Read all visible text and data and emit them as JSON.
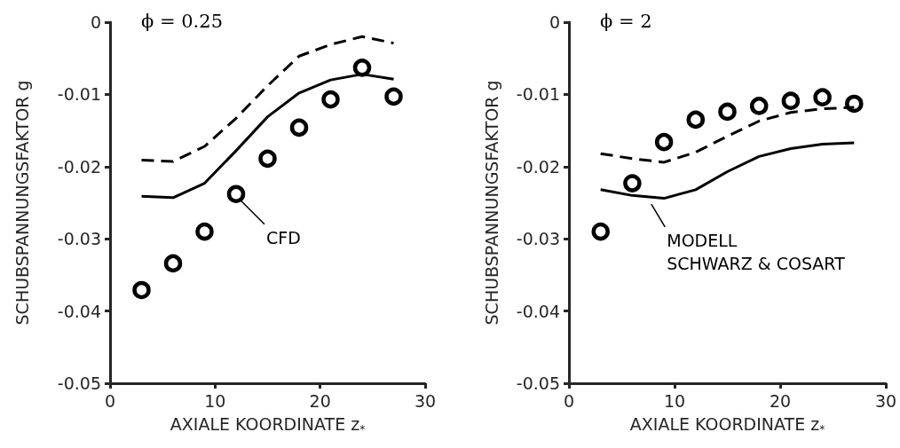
{
  "chart_data": [
    {
      "type": "line",
      "title": "ϕ = 0.25",
      "xlabel": "AXIALE KOORDINATE z$_{*}$",
      "ylabel": "SCHUBSPANNUNGSFAKTOR g",
      "x": [
        3,
        6,
        9,
        12,
        15,
        18,
        21,
        24,
        27
      ],
      "series": [
        {
          "type": "scatter",
          "marker": "circle",
          "color": "#000000",
          "values": [
            -0.0371,
            -0.0334,
            -0.029,
            -0.0238,
            -0.0189,
            -0.0146,
            -0.0107,
            -0.0063,
            -0.0103
          ]
        },
        {
          "type": "line",
          "line_style": "solid",
          "color": "#000000",
          "values": [
            -0.0241,
            -0.0243,
            -0.0223,
            -0.0178,
            -0.0131,
            -0.0098,
            -0.008,
            -0.0072,
            -0.0079
          ]
        },
        {
          "type": "line",
          "line_style": "dashed",
          "color": "#000000",
          "values": [
            -0.0191,
            -0.0193,
            -0.0172,
            -0.0133,
            -0.0088,
            -0.0047,
            -0.0031,
            -0.002,
            -0.0029
          ]
        }
      ],
      "annotations": [
        {
          "text": "CFD",
          "x": 12,
          "y": -0.0238
        }
      ],
      "xlim": [
        0,
        30
      ],
      "xticks": [
        0,
        10,
        20,
        30
      ],
      "ylim": [
        -0.05,
        0
      ],
      "yticks": [
        -0.05,
        -0.04,
        -0.03,
        -0.02,
        -0.01,
        0
      ],
      "grid": false,
      "marker": "none"
    },
    {
      "type": "line",
      "title": "ϕ = 2",
      "xlabel": "AXIALE KOORDINATE z$_{*}$",
      "ylabel": "SCHUBSPANNUNGSFAKTOR g",
      "x": [
        3,
        6,
        9,
        12,
        15,
        18,
        21,
        24,
        27
      ],
      "series": [
        {
          "type": "scatter",
          "marker": "circle",
          "color": "#000000",
          "values": [
            -0.029,
            -0.0223,
            -0.0166,
            -0.0135,
            -0.0124,
            -0.0116,
            -0.0109,
            -0.0104,
            -0.0113
          ]
        },
        {
          "type": "line",
          "line_style": "solid",
          "color": "#000000",
          "values": [
            -0.0232,
            -0.024,
            -0.0244,
            -0.0232,
            -0.0207,
            -0.0186,
            -0.0175,
            -0.0169,
            -0.0167
          ]
        },
        {
          "type": "line",
          "line_style": "dashed",
          "color": "#000000",
          "values": [
            -0.0182,
            -0.0189,
            -0.0194,
            -0.018,
            -0.0158,
            -0.0137,
            -0.0125,
            -0.012,
            -0.0118
          ]
        }
      ],
      "annotations": [
        {
          "text": "MODELL\nSCHWARZ & COSART",
          "x": 7.5,
          "y": -0.0242
        }
      ],
      "xlim": [
        0,
        30
      ],
      "xticks": [
        0,
        10,
        20,
        30
      ],
      "ylim": [
        -0.05,
        0
      ],
      "yticks": [
        -0.05,
        -0.04,
        -0.03,
        -0.02,
        -0.01,
        0
      ],
      "grid": false,
      "marker": "none"
    }
  ]
}
